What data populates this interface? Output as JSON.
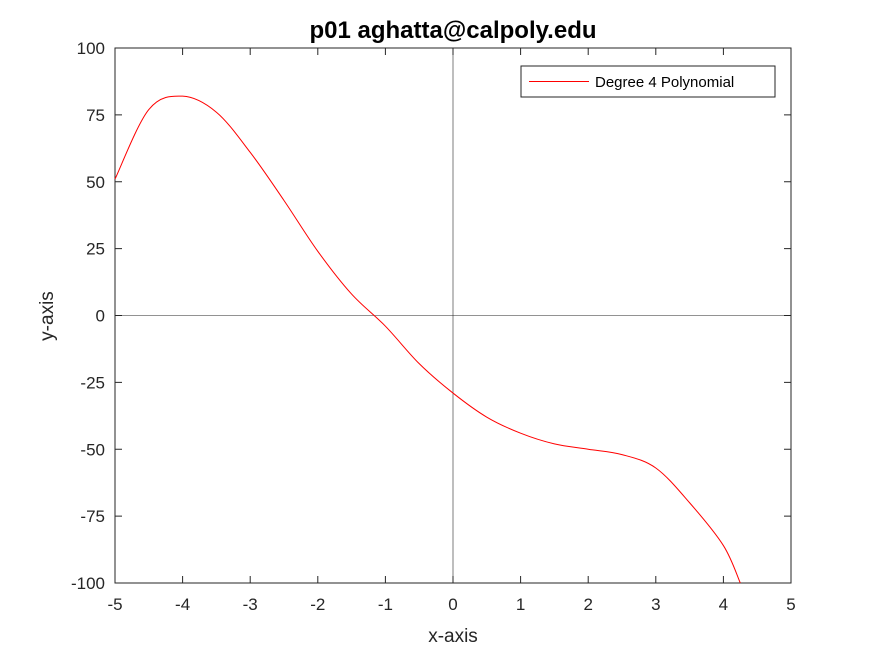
{
  "chart_data": {
    "type": "line",
    "title": "p01 aghatta@calpoly.edu",
    "xlabel": "x-axis",
    "ylabel": "y-axis",
    "xlim": [
      -5,
      5
    ],
    "ylim": [
      -100,
      100
    ],
    "xticks": [
      -5,
      -4,
      -3,
      -2,
      -1,
      0,
      1,
      2,
      3,
      4,
      5
    ],
    "yticks": [
      -100,
      -75,
      -50,
      -25,
      0,
      25,
      50,
      75,
      100
    ],
    "grid": false,
    "reference_lines": {
      "x0": true,
      "y0": true
    },
    "legend": {
      "position": "top-right"
    },
    "series": [
      {
        "name": "Degree 4 Polynomial",
        "color": "#ff0000",
        "x": [
          -5,
          -4.5,
          -4,
          -3.5,
          -3,
          -2.5,
          -2,
          -1.5,
          -1,
          -0.5,
          0,
          0.5,
          1,
          1.5,
          2,
          2.5,
          3,
          3.5,
          4,
          4.25
        ],
        "y": [
          51,
          77,
          82,
          76,
          61,
          43,
          24,
          8,
          -4,
          -18,
          -29,
          -38,
          -44,
          -48,
          -50,
          -52,
          -57,
          -70,
          -86,
          -100
        ]
      }
    ]
  }
}
